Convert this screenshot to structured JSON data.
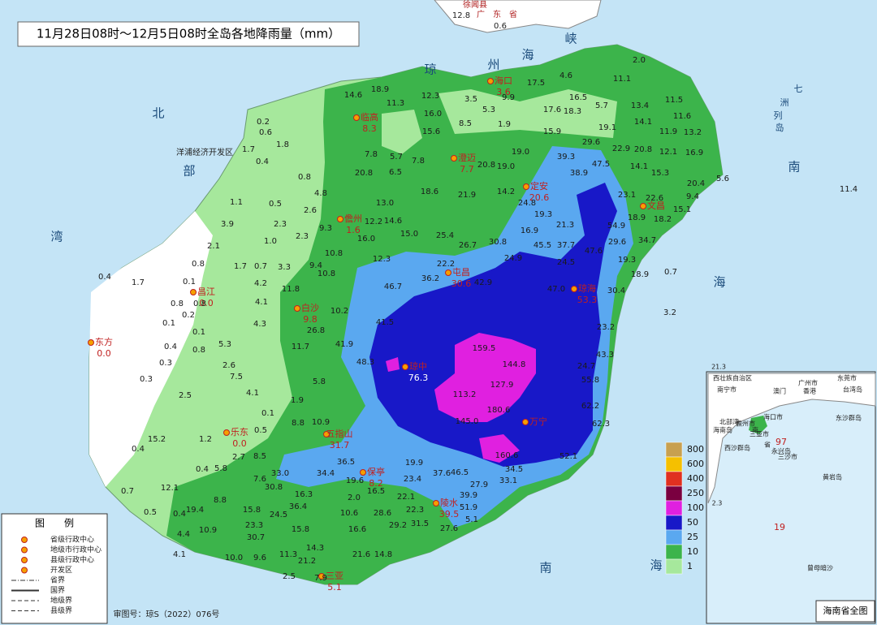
{
  "title": "11月28日08时～12月5日08时全岛各地降雨量（mm）",
  "top_labels": [
    "徐闻县",
    "广　东　省",
    "12.8",
    "0.6"
  ],
  "sea_labels": [
    "琼",
    "州",
    "海",
    "峡",
    "北",
    "部",
    "湾",
    "南",
    "海",
    "南",
    "海",
    "七",
    "洲",
    "列",
    "岛"
  ],
  "place_labels": [
    "洋浦经济开发区"
  ],
  "cities": [
    {
      "name": "海口",
      "value": "3.6"
    },
    {
      "name": "临高",
      "value": "8.3"
    },
    {
      "name": "澄迈",
      "value": "7.7"
    },
    {
      "name": "定安",
      "value": "20.6"
    },
    {
      "name": "文昌"
    },
    {
      "name": "琼海",
      "value": "53.3"
    },
    {
      "name": "屯昌",
      "value": "30.6"
    },
    {
      "name": "儋州",
      "value": "1.6"
    },
    {
      "name": "白沙",
      "value": "9.8"
    },
    {
      "name": "昌江",
      "value": "0.0"
    },
    {
      "name": "东方",
      "value": "0.0"
    },
    {
      "name": "琼中",
      "value": "76.3"
    },
    {
      "name": "万宁"
    },
    {
      "name": "五指山",
      "value": "31.7"
    },
    {
      "name": "乐东",
      "value": "0.0"
    },
    {
      "name": "保亭",
      "value": "8.2"
    },
    {
      "name": "陵水",
      "value": "39.5"
    },
    {
      "name": "三亚",
      "value": "5.1"
    }
  ],
  "stations": [
    "18.9",
    "11.3",
    "12.3",
    "3.5",
    "5.3",
    "9.9",
    "17.5",
    "4.6",
    "16.5",
    "17.6",
    "18.3",
    "5.7",
    "11.1",
    "2.0",
    "13.4",
    "11.5",
    "11.6",
    "19.1",
    "14.1",
    "11.9",
    "13.2",
    "22.9",
    "20.8",
    "12.1",
    "16.9",
    "14.1",
    "15.3",
    "20.4",
    "9.4",
    "5.6",
    "11.4",
    "39.3",
    "38.9",
    "47.5",
    "29.6",
    "15.9",
    "23.1",
    "22.6",
    "18.9",
    "18.2",
    "15.1",
    "54.9",
    "29.6",
    "34.7",
    "19.3",
    "18.9",
    "0.7",
    "3.2",
    "30.4",
    "23.2",
    "43.3",
    "24.7",
    "55.8",
    "62.2",
    "62.3",
    "52.1",
    "33.1",
    "34.5",
    "27.9",
    "37.6",
    "46.5",
    "39.9",
    "51.9",
    "27.6",
    "5.1",
    "19.9",
    "23.4",
    "22.1",
    "22.3",
    "29.2",
    "31.5",
    "16.5",
    "2.0",
    "28.6",
    "10.6",
    "16.6",
    "21.6",
    "14.8",
    "14.3",
    "21.2",
    "11.3",
    "9.6",
    "10.0",
    "2.5",
    "7.9",
    "30.7",
    "23.3",
    "24.5",
    "33.0",
    "30.8",
    "16.3",
    "34.4",
    "36.5",
    "19.6",
    "36.4",
    "15.8",
    "15.8",
    "7.6",
    "4.1",
    "0.2",
    "0.6",
    "1.8",
    "1.7",
    "0.4",
    "0.8",
    "4.8",
    "1.1",
    "0.5",
    "2.6",
    "3.9",
    "2.3",
    "9.3",
    "2.1",
    "1.0",
    "2.3",
    "0.8",
    "1.7",
    "0.7",
    "3.3",
    "9.4",
    "0.1",
    "0.4",
    "1.7",
    "4.2",
    "11.8",
    "0.8",
    "0.2",
    "0.8",
    "4.1",
    "0.1",
    "0.1",
    "4.3",
    "0.4",
    "0.8",
    "5.3",
    "0.3",
    "2.6",
    "0.3",
    "7.5",
    "2.5",
    "4.1",
    "1.9",
    "5.8",
    "0.1",
    "8.8",
    "10.9",
    "0.4",
    "15.2",
    "1.2",
    "0.5",
    "2.7",
    "8.5",
    "0.4",
    "5.8",
    "0.7",
    "12.1",
    "0.5",
    "0.4",
    "19.4",
    "8.8",
    "4.4",
    "10.9",
    "14.6",
    "7.8",
    "5.7",
    "7.8",
    "20.8",
    "6.5",
    "16.0",
    "15.6",
    "8.5",
    "1.9",
    "20.8",
    "19.0",
    "19.0",
    "21.9",
    "18.6",
    "14.2",
    "24.8",
    "19.3",
    "13.0",
    "12.2",
    "14.6",
    "16.0",
    "15.0",
    "25.4",
    "26.7",
    "30.8",
    "16.9",
    "21.3",
    "24.9",
    "45.5",
    "37.7",
    "47.6",
    "24.5",
    "22.2",
    "36.2",
    "46.7",
    "10.8",
    "10.8",
    "12.3",
    "10.2",
    "26.8",
    "11.7",
    "41.9",
    "41.5",
    "48.3",
    "47.0",
    "42.9",
    "159.5",
    "127.9",
    "144.8",
    "113.2",
    "145.0",
    "180.6",
    "160.6"
  ],
  "scale": {
    "levels": [
      800,
      600,
      400,
      250,
      100,
      50,
      25,
      10,
      1
    ],
    "colors": [
      "#c8a050",
      "#f5c000",
      "#e03020",
      "#7a0040",
      "#e020e0",
      "#1818c8",
      "#5aa8f0",
      "#3cb44b",
      "#a6e89c"
    ]
  },
  "legend": {
    "title": "图　　例",
    "items": [
      "省级行政中心",
      "地级市行政中心",
      "县级行政中心",
      "开发区",
      "省界",
      "国界",
      "地级界",
      "县级界"
    ]
  },
  "approval": "审图号：琼S（2022）076号",
  "inset": {
    "title": "海南省全图",
    "labels": [
      "西壮族自治区",
      "南宁市",
      "广州市",
      "东莞市",
      "澳门",
      "香港",
      "台湾岛",
      "北部湾",
      "海口市",
      "儋州市",
      "三亚市",
      "海南岛",
      "南",
      "省",
      "东沙群岛",
      "西沙群岛",
      "三沙市",
      "永兴岛",
      "黄岩岛",
      "97",
      "19",
      "2.3",
      "21.3",
      "曾母暗沙"
    ]
  }
}
